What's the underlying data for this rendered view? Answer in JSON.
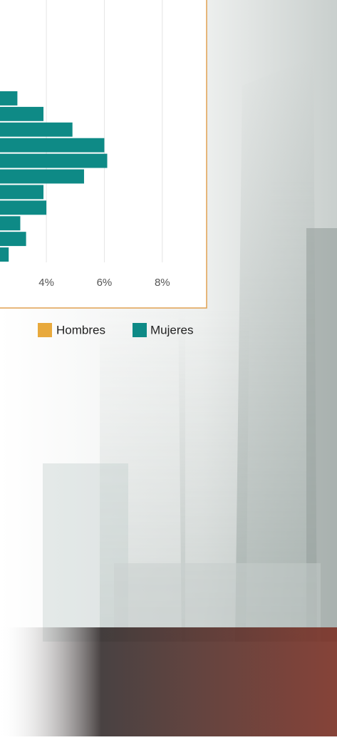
{
  "chart_data": {
    "type": "bar",
    "orientation": "horizontal",
    "series": [
      {
        "name": "Hombres",
        "color": "#e8a93c"
      },
      {
        "name": "Mujeres",
        "color": "#0e8a86",
        "values": [
          3.0,
          3.9,
          4.9,
          6.0,
          6.1,
          5.3,
          3.9,
          4.0,
          3.1,
          3.3,
          2.7
        ]
      }
    ],
    "xlim": [
      2.4,
      8.3
    ],
    "xticks": [
      {
        "value": 4,
        "label": "4%"
      },
      {
        "value": 6,
        "label": "6%"
      },
      {
        "value": 8,
        "label": "8%"
      }
    ],
    "grid": true
  }
}
